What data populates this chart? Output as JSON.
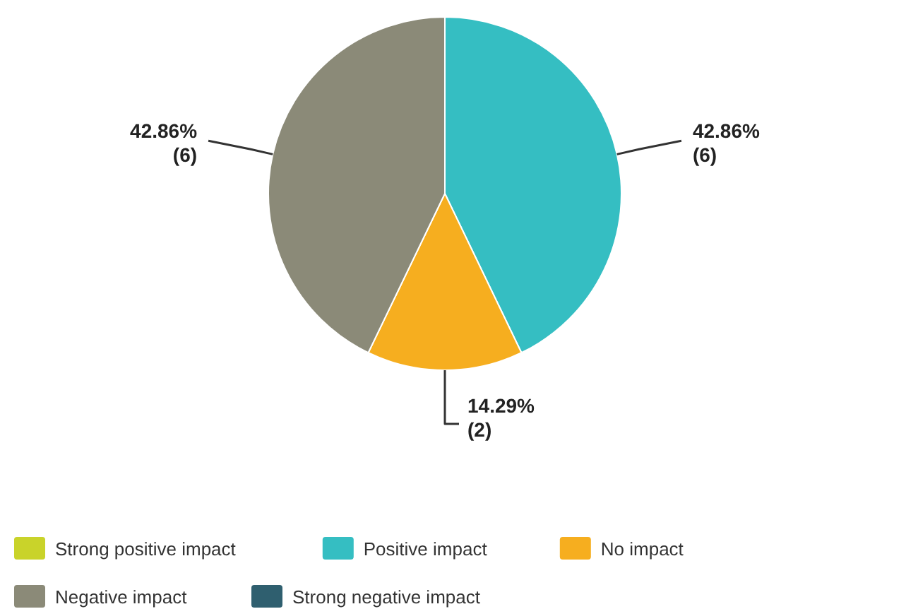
{
  "chart_data": {
    "type": "pie",
    "categories": [
      "Strong positive impact",
      "Positive impact",
      "No impact",
      "Negative impact",
      "Strong negative impact"
    ],
    "values": [
      0,
      6,
      2,
      6,
      0
    ],
    "value_labels": [
      null,
      "42.86% (6)",
      "14.29% (2)",
      "42.86% (6)",
      null
    ],
    "colors": [
      "#c9d32a",
      "#35bec2",
      "#f6ae1f",
      "#8b8a78",
      "#2f5f6f"
    ],
    "legend": "bottom"
  }
}
